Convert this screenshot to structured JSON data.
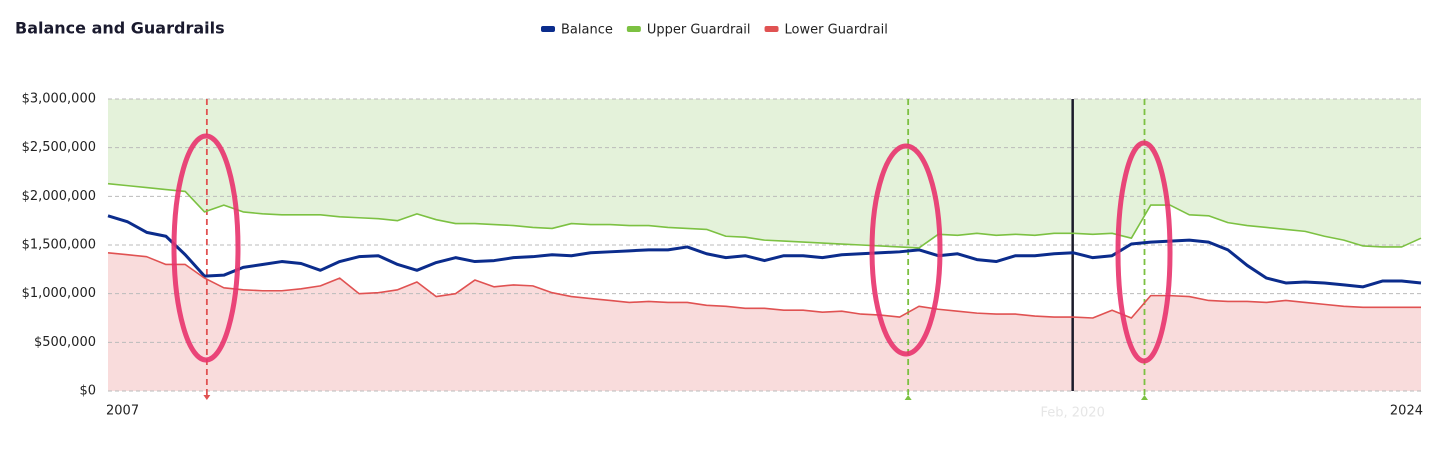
{
  "chart_data": {
    "type": "line",
    "title": "Balance and Guardrails",
    "legend": "top",
    "grid": true,
    "x": [
      2007.0,
      2007.25,
      2007.5,
      2007.75,
      2008.0,
      2008.25,
      2008.5,
      2008.75,
      2009.0,
      2009.25,
      2009.5,
      2009.75,
      2010.0,
      2010.25,
      2010.5,
      2010.75,
      2011.0,
      2011.25,
      2011.5,
      2011.75,
      2012.0,
      2012.25,
      2012.5,
      2012.75,
      2013.0,
      2013.25,
      2013.5,
      2013.75,
      2014.0,
      2014.25,
      2014.5,
      2014.75,
      2015.0,
      2015.25,
      2015.5,
      2015.75,
      2016.0,
      2016.25,
      2016.5,
      2016.75,
      2017.0,
      2017.25,
      2017.5,
      2017.75,
      2018.0,
      2018.25,
      2018.5,
      2018.75,
      2019.0,
      2019.25,
      2019.5,
      2019.75,
      2020.0,
      2020.25,
      2020.5,
      2020.75,
      2021.0,
      2021.25,
      2021.5,
      2021.75,
      2022.0,
      2022.25,
      2022.5,
      2022.75,
      2023.0,
      2023.25,
      2023.5,
      2023.75,
      2024.0
    ],
    "xlim": [
      2007,
      2024
    ],
    "xticks": [
      2007,
      2024
    ],
    "ylim": [
      0,
      3000000
    ],
    "yticks": [
      {
        "value": 0,
        "label": "$0"
      },
      {
        "value": 500000,
        "label": "$500,000"
      },
      {
        "value": 1000000,
        "label": "$1,000,000"
      },
      {
        "value": 1500000,
        "label": "$1,500,000"
      },
      {
        "value": 2000000,
        "label": "$2,000,000"
      },
      {
        "value": 2500000,
        "label": "$2,500,000"
      },
      {
        "value": 3000000,
        "label": "$3,000,000"
      }
    ],
    "series": [
      {
        "name": "Balance",
        "color": "#0b2c8c",
        "values": [
          1800000,
          1740000,
          1630000,
          1590000,
          1400000,
          1180000,
          1190000,
          1270000,
          1300000,
          1330000,
          1310000,
          1240000,
          1330000,
          1380000,
          1390000,
          1300000,
          1240000,
          1320000,
          1370000,
          1330000,
          1340000,
          1370000,
          1380000,
          1400000,
          1390000,
          1420000,
          1430000,
          1440000,
          1450000,
          1450000,
          1480000,
          1410000,
          1370000,
          1390000,
          1340000,
          1390000,
          1390000,
          1370000,
          1400000,
          1410000,
          1420000,
          1430000,
          1450000,
          1390000,
          1410000,
          1350000,
          1330000,
          1390000,
          1390000,
          1410000,
          1420000,
          1370000,
          1390000,
          1510000,
          1530000,
          1540000,
          1550000,
          1530000,
          1450000,
          1290000,
          1160000,
          1110000,
          1120000,
          1110000,
          1090000,
          1070000,
          1130000,
          1130000,
          1110000
        ]
      },
      {
        "name": "Upper Guardrail",
        "color": "#7cc142",
        "fill": "#e4f2da",
        "values": [
          2130000,
          2110000,
          2090000,
          2070000,
          2050000,
          1840000,
          1910000,
          1840000,
          1820000,
          1810000,
          1810000,
          1810000,
          1790000,
          1780000,
          1770000,
          1750000,
          1820000,
          1760000,
          1720000,
          1720000,
          1710000,
          1700000,
          1680000,
          1670000,
          1720000,
          1710000,
          1710000,
          1700000,
          1700000,
          1680000,
          1670000,
          1660000,
          1590000,
          1580000,
          1550000,
          1540000,
          1530000,
          1520000,
          1510000,
          1500000,
          1490000,
          1480000,
          1470000,
          1610000,
          1600000,
          1620000,
          1600000,
          1610000,
          1600000,
          1620000,
          1620000,
          1610000,
          1620000,
          1570000,
          1910000,
          1910000,
          1810000,
          1800000,
          1730000,
          1700000,
          1680000,
          1660000,
          1640000,
          1590000,
          1550000,
          1490000,
          1480000,
          1480000,
          1570000
        ]
      },
      {
        "name": "Lower Guardrail",
        "color": "#e05252",
        "fill": "#f9dcdc",
        "values": [
          1420000,
          1400000,
          1380000,
          1300000,
          1300000,
          1160000,
          1060000,
          1040000,
          1030000,
          1030000,
          1050000,
          1080000,
          1160000,
          1000000,
          1010000,
          1040000,
          1120000,
          970000,
          1000000,
          1140000,
          1070000,
          1090000,
          1080000,
          1010000,
          970000,
          950000,
          930000,
          910000,
          920000,
          910000,
          910000,
          880000,
          870000,
          850000,
          850000,
          830000,
          830000,
          810000,
          820000,
          790000,
          780000,
          760000,
          870000,
          840000,
          820000,
          800000,
          790000,
          790000,
          770000,
          760000,
          760000,
          750000,
          830000,
          750000,
          980000,
          980000,
          970000,
          930000,
          920000,
          920000,
          910000,
          930000,
          910000,
          890000,
          870000,
          860000,
          860000,
          860000,
          860000
        ]
      }
    ],
    "markers": [
      {
        "x": 2008.28,
        "color": "#e05252"
      },
      {
        "x": 2017.36,
        "color": "#7cc142"
      },
      {
        "x": 2020.42,
        "color": "#7cc142"
      }
    ],
    "cursor": {
      "x": 2019.49,
      "label": "Feb, 2020"
    }
  }
}
